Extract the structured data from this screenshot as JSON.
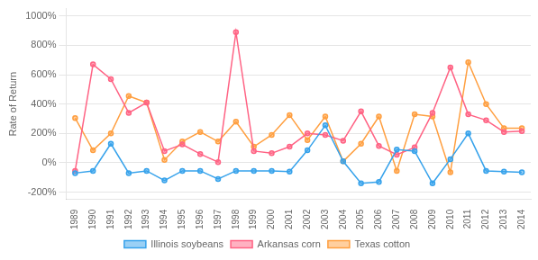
{
  "chart_data": {
    "type": "line",
    "categories": [
      "1989",
      "1990",
      "1991",
      "1992",
      "1993",
      "1994",
      "1995",
      "1996",
      "1997",
      "1998",
      "1999",
      "2000",
      "2001",
      "2002",
      "2003",
      "2004",
      "2005",
      "2006",
      "2007",
      "2008",
      "2009",
      "2010",
      "2011",
      "2012",
      "2013",
      "2014"
    ],
    "series": [
      {
        "name": "Illinois soybeans",
        "values": [
          -0.7,
          -0.55,
          1.3,
          -0.7,
          -0.55,
          -1.2,
          -0.55,
          -0.55,
          -1.1,
          -0.55,
          -0.55,
          -0.55,
          -0.6,
          0.85,
          2.55,
          0.1,
          -1.4,
          -1.3,
          0.9,
          0.8,
          -1.4,
          0.25,
          2.0,
          -0.55,
          -0.6,
          -0.65
        ]
      },
      {
        "name": "Arkansas corn",
        "values": [
          -0.55,
          6.7,
          5.7,
          3.4,
          4.1,
          0.8,
          1.25,
          0.6,
          0.05,
          8.9,
          0.8,
          0.65,
          1.1,
          2.0,
          1.9,
          1.5,
          3.5,
          1.15,
          0.55,
          1.05,
          3.4,
          6.5,
          3.3,
          2.9,
          2.1,
          2.15
        ]
      },
      {
        "name": "Texas cotton",
        "values": [
          3.05,
          0.85,
          2.0,
          4.55,
          4.1,
          0.2,
          1.45,
          2.1,
          1.45,
          2.8,
          1.1,
          1.9,
          3.25,
          1.55,
          3.15,
          0.1,
          1.3,
          3.15,
          -0.55,
          3.3,
          3.15,
          -0.65,
          6.85,
          4.0,
          2.35,
          2.35
        ]
      }
    ],
    "y_label": "Rate of Return",
    "ylim": [
      -2.5,
      10.5
    ],
    "yticks": [
      {
        "value": -2,
        "label": "-200%"
      },
      {
        "value": 0,
        "label": "0%"
      },
      {
        "value": 2,
        "label": "200%"
      },
      {
        "value": 4,
        "label": "400%"
      },
      {
        "value": 6,
        "label": "600%"
      },
      {
        "value": 8,
        "label": "800%"
      },
      {
        "value": 10,
        "label": "1000%"
      }
    ],
    "grid": true,
    "legend": "bottom",
    "marker": "circle"
  }
}
